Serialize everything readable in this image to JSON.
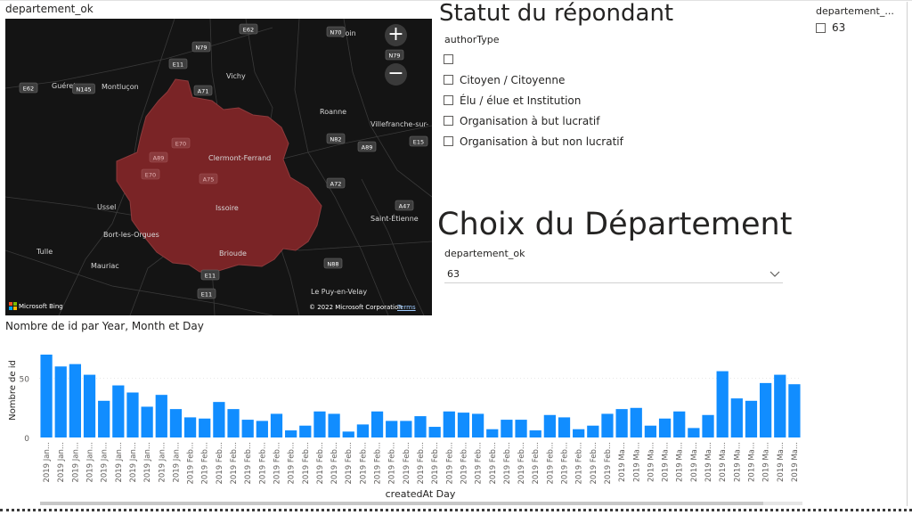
{
  "map": {
    "title": "departement_ok",
    "zoom_in": "+",
    "zoom_out": "−",
    "brand": "Microsoft Bing",
    "copyright": "© 2022 Microsoft Corporation",
    "terms": "Terms",
    "region_color": "#7a2426",
    "places": [
      "Montluçon",
      "Vichy",
      "Roanne",
      "Guéret",
      "Clermont-Ferrand",
      "Villefranche-sur-",
      "Ussel",
      "Bort-les-Orgues",
      "Issoire",
      "Saint-Étienne",
      "Tulle",
      "Mauriac",
      "Brioude",
      "Le Puy-en-Velay",
      "Digoin"
    ],
    "roads": [
      "E62",
      "N70",
      "N79",
      "N79",
      "E11",
      "E62",
      "N145",
      "A71",
      "E70",
      "A89",
      "E70",
      "A75",
      "N82",
      "A89",
      "E15",
      "A72",
      "A47",
      "E11",
      "E11",
      "N88"
    ]
  },
  "statut": {
    "heading": "Statut du répondant",
    "field": "authorType",
    "options": [
      "",
      "Citoyen / Citoyenne",
      "Élu / élue et Institution",
      "Organisation à but lucratif",
      "Organisation à but non lucratif"
    ]
  },
  "right_slicer": {
    "title": "departement_...",
    "option": "63"
  },
  "choix": {
    "heading": "Choix du Département",
    "field": "departement_ok",
    "selected": "63"
  },
  "chart_data": {
    "type": "bar",
    "title": "Nombre de id par Year, Month et Day",
    "xlabel": "createdAt Day",
    "ylabel": "Nombre de id",
    "yticks": [
      0,
      50
    ],
    "ylim": [
      0,
      70
    ],
    "color": "#118dff",
    "categories": [
      "2019 Jan...",
      "2019 Jan...",
      "2019 Jan...",
      "2019 Jan...",
      "2019 Jan...",
      "2019 Jan...",
      "2019 Jan...",
      "2019 Jan...",
      "2019 Jan...",
      "2019 Jan...",
      "2019 Feb...",
      "2019 Feb...",
      "2019 Feb...",
      "2019 Feb...",
      "2019 Feb...",
      "2019 Feb...",
      "2019 Feb...",
      "2019 Feb...",
      "2019 Feb...",
      "2019 Feb...",
      "2019 Feb...",
      "2019 Feb...",
      "2019 Feb...",
      "2019 Feb...",
      "2019 Feb...",
      "2019 Feb...",
      "2019 Feb...",
      "2019 Feb...",
      "2019 Feb...",
      "2019 Feb...",
      "2019 Feb...",
      "2019 Feb...",
      "2019 Feb...",
      "2019 Feb...",
      "2019 Feb...",
      "2019 Feb...",
      "2019 Feb...",
      "2019 Feb...",
      "2019 Feb...",
      "2019 Feb...",
      "2019 Ma...",
      "2019 Ma...",
      "2019 Ma...",
      "2019 Ma...",
      "2019 Ma...",
      "2019 Ma...",
      "2019 Ma...",
      "2019 Ma...",
      "2019 Ma...",
      "2019 Ma...",
      "2019 Ma...",
      "2019 Ma...",
      "2019 Ma..."
    ],
    "values": [
      70,
      60,
      62,
      53,
      31,
      44,
      38,
      26,
      36,
      24,
      17,
      16,
      30,
      24,
      15,
      14,
      20,
      6,
      10,
      22,
      20,
      5,
      11,
      22,
      14,
      14,
      18,
      9,
      22,
      21,
      20,
      7,
      15,
      15,
      6,
      19,
      17,
      7,
      10,
      20,
      24,
      25,
      10,
      16,
      22,
      8,
      19,
      56,
      33,
      31,
      46,
      53,
      45
    ]
  }
}
